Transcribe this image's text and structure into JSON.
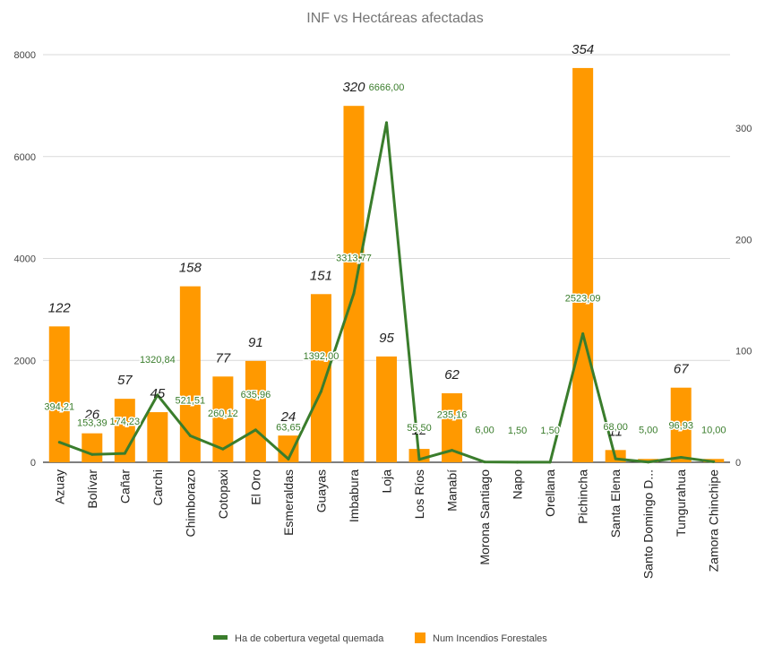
{
  "chart_data": {
    "type": "bar",
    "title": "INF vs Hectáreas afectadas",
    "categories": [
      "Azuay",
      "Bolívar",
      "Cañar",
      "Carchi",
      "Chimborazo",
      "Cotopaxi",
      "El Oro",
      "Esmeraldas",
      "Guayas",
      "Imbabura",
      "Loja",
      "Los Ríos",
      "Manabí",
      "Morona Santiago",
      "Napo",
      "Orellana",
      "Pichincha",
      "Santa Elena",
      "Santo Domingo D...",
      "Tungurahua",
      "Zamora Chinchipe"
    ],
    "series": [
      {
        "name": "Ha de cobertura vegetal quemada",
        "type": "line",
        "axis": "left",
        "color": "#3a7d2c",
        "values": [
          394.21,
          153.39,
          174.23,
          1320.84,
          521.51,
          260.12,
          635.96,
          63.65,
          1392.0,
          3313.77,
          6666.0,
          55.5,
          235.16,
          6.0,
          1.5,
          1.5,
          2523.09,
          68.0,
          5.0,
          96.93,
          10.0
        ],
        "labels": [
          "394,21",
          "153,39",
          "174,23",
          "1320,84",
          "521,51",
          "260,12",
          "635,96",
          "63,65",
          "1392,00",
          "3313,77",
          "6666,00",
          "55,50",
          "235,16",
          "6,00",
          "1,50",
          "1,50",
          "2523,09",
          "68,00",
          "5,00",
          "96,93",
          "10,00"
        ]
      },
      {
        "name": "Num Incendios Forestales",
        "type": "bar",
        "axis": "right",
        "color": "#ff9900",
        "values": [
          122,
          26,
          57,
          45,
          158,
          77,
          91,
          24,
          151,
          320,
          95,
          12,
          62,
          0,
          0,
          0,
          354,
          11,
          3,
          67,
          3
        ],
        "labels": [
          "122",
          "26",
          "57",
          "45",
          "158",
          "77",
          "91",
          "24",
          "151",
          "320",
          "95",
          "12",
          "62",
          "",
          "",
          "",
          "354",
          "11",
          "",
          "67",
          ""
        ]
      }
    ],
    "y_left": {
      "ylim": [
        0,
        8000
      ],
      "ticks": [
        "0",
        "2000",
        "4000",
        "6000",
        "8000"
      ]
    },
    "y_right": {
      "ylim": [
        0,
        366
      ],
      "ticks": [
        "0",
        "100",
        "200",
        "300"
      ]
    },
    "grid": true,
    "legend": "bottom"
  }
}
